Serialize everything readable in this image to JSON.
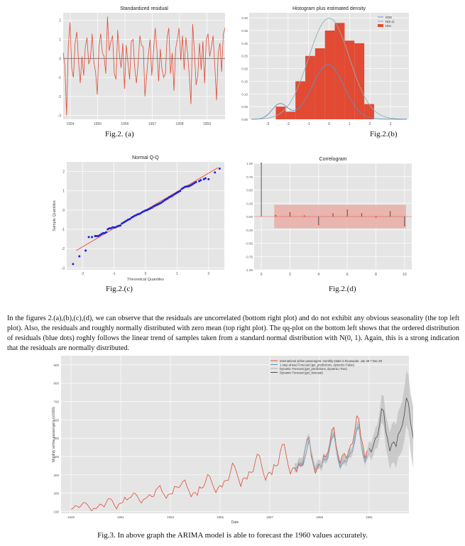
{
  "figures": {
    "a": {
      "caption": "Fig.2. (a)",
      "chart_data": {
        "type": "line",
        "title": "Standardized residual",
        "x_ticks": [
          "1954",
          "1955",
          "1956",
          "1957",
          "1958",
          "1959"
        ],
        "y_ticks": [
          "2",
          "1",
          "0",
          "-1",
          "-2",
          "-3"
        ],
        "ylim": [
          -3.2,
          2.4
        ],
        "reference_line": 0,
        "grid": true,
        "colors": {
          "line": "#e24a33",
          "reference": "#555555",
          "background": "#e5e5e5"
        },
        "values": [
          0.3,
          -0.4,
          -3.0,
          0.6,
          1.9,
          -0.5,
          -1.0,
          0.8,
          1.4,
          -0.1,
          -1.3,
          0.1,
          -0.9,
          0.6,
          1.1,
          -0.3,
          0.0,
          1.3,
          -0.2,
          -0.7,
          -1.9,
          0.6,
          1.3,
          0.3,
          0.1,
          -0.8,
          2.2,
          0.4,
          0.9,
          1.2,
          -0.8,
          -1.1,
          1.5,
          0.2,
          -0.5,
          0.8,
          -1.6,
          0.7,
          -0.2,
          -1.1,
          0.9,
          1.0,
          -0.5,
          -1.3,
          -0.3,
          1.2,
          0.7,
          0.6,
          -2.0,
          -0.9,
          0.2,
          1.0,
          -0.9,
          0.4,
          1.6,
          0.5,
          -1.2,
          0.5,
          -0.6,
          -1.0,
          -0.8,
          1.1,
          1.6,
          -0.8,
          0.3,
          -1.7,
          0.5,
          1.0,
          1.6,
          -0.1,
          1.2,
          -0.6,
          1.1,
          0.3,
          -0.9,
          -2.4,
          1.8,
          0.4,
          -1.4,
          -0.9,
          0.8,
          -0.6,
          0.9,
          -1.3,
          1.0,
          1.3,
          0.1,
          0.6,
          1.2,
          -0.4,
          -2.2,
          0.3,
          0.8,
          -0.7,
          1.3,
          1.6
        ]
      }
    },
    "b": {
      "caption": "Fig.2.(b)",
      "chart_data": {
        "type": "bar",
        "title": "Histogram plus estimated density",
        "x_ticks": [
          "-3",
          "-2",
          "-1",
          "0",
          "1",
          "2",
          "3"
        ],
        "y_ticks": [
          "0.40",
          "0.35",
          "0.30",
          "0.25",
          "0.20",
          "0.15",
          "0.10",
          "0.05",
          "0.00"
        ],
        "ylim": [
          0,
          0.42
        ],
        "xlim": [
          -3.9,
          3.9
        ],
        "legend": [
          "KDE",
          "N(0,1)",
          "Hist"
        ],
        "legend_position": "top-right",
        "grid": true,
        "bins": [
          -2.6,
          -2.12,
          -1.64,
          -1.16,
          -0.68,
          -0.2,
          0.28,
          0.76,
          1.24,
          1.72,
          2.2
        ],
        "hist_values": [
          0.05,
          0.03,
          0.15,
          0.25,
          0.28,
          0.35,
          0.38,
          0.31,
          0.3,
          0.06
        ],
        "colors": {
          "hist": "#e24a33",
          "kde": "#5f8fc7",
          "normal": "#8fb0b8",
          "background": "#e5e5e5"
        }
      }
    },
    "c": {
      "caption": "Fig.2.(c)",
      "chart_data": {
        "type": "scatter",
        "title": "Normal Q-Q",
        "xlabel": "Theoretical Quantiles",
        "ylabel": "Sample Quantiles",
        "x_ticks": [
          "-2",
          "-1",
          "0",
          "1",
          "2"
        ],
        "y_ticks": [
          "2",
          "1",
          "0",
          "-1",
          "-2",
          "-3"
        ],
        "xlim": [
          -2.5,
          2.5
        ],
        "ylim": [
          -3.1,
          2.5
        ],
        "grid": true,
        "reference_line": {
          "from": [
            -2.2,
            -2.1
          ],
          "to": [
            2.3,
            2.2
          ]
        },
        "points": [
          [
            -2.3,
            -2.8
          ],
          [
            -2.1,
            -2.4
          ],
          [
            -1.9,
            -2.1
          ],
          [
            -1.8,
            -1.4
          ],
          [
            -1.7,
            -1.4
          ],
          [
            -1.6,
            -1.35
          ],
          [
            -1.55,
            -1.35
          ],
          [
            -1.5,
            -1.35
          ],
          [
            -1.45,
            -1.3
          ],
          [
            -1.4,
            -1.25
          ],
          [
            -1.35,
            -1.2
          ],
          [
            -1.3,
            -1.2
          ],
          [
            -1.25,
            -1.15
          ],
          [
            -1.2,
            -1.0
          ],
          [
            -1.15,
            -0.95
          ],
          [
            -1.1,
            -0.95
          ],
          [
            -1.05,
            -0.9
          ],
          [
            -1.0,
            -0.9
          ],
          [
            -0.95,
            -0.9
          ],
          [
            -0.9,
            -0.85
          ],
          [
            -0.85,
            -0.82
          ],
          [
            -0.8,
            -0.8
          ],
          [
            -0.75,
            -0.7
          ],
          [
            -0.7,
            -0.65
          ],
          [
            -0.65,
            -0.6
          ],
          [
            -0.6,
            -0.55
          ],
          [
            -0.55,
            -0.5
          ],
          [
            -0.5,
            -0.47
          ],
          [
            -0.45,
            -0.4
          ],
          [
            -0.4,
            -0.35
          ],
          [
            -0.35,
            -0.3
          ],
          [
            -0.3,
            -0.27
          ],
          [
            -0.25,
            -0.22
          ],
          [
            -0.2,
            -0.2
          ],
          [
            -0.15,
            -0.16
          ],
          [
            -0.1,
            -0.1
          ],
          [
            -0.05,
            -0.06
          ],
          [
            0.0,
            -0.02
          ],
          [
            0.05,
            0.0
          ],
          [
            0.1,
            0.04
          ],
          [
            0.15,
            0.08
          ],
          [
            0.2,
            0.12
          ],
          [
            0.25,
            0.18
          ],
          [
            0.3,
            0.22
          ],
          [
            0.35,
            0.26
          ],
          [
            0.4,
            0.3
          ],
          [
            0.45,
            0.34
          ],
          [
            0.5,
            0.38
          ],
          [
            0.55,
            0.44
          ],
          [
            0.6,
            0.5
          ],
          [
            0.65,
            0.55
          ],
          [
            0.7,
            0.6
          ],
          [
            0.75,
            0.66
          ],
          [
            0.8,
            0.7
          ],
          [
            0.85,
            0.74
          ],
          [
            0.9,
            0.8
          ],
          [
            0.95,
            0.85
          ],
          [
            1.0,
            0.9
          ],
          [
            1.05,
            0.95
          ],
          [
            1.1,
            1.0
          ],
          [
            1.15,
            1.1
          ],
          [
            1.2,
            1.15
          ],
          [
            1.25,
            1.2
          ],
          [
            1.3,
            1.22
          ],
          [
            1.35,
            1.23
          ],
          [
            1.4,
            1.25
          ],
          [
            1.45,
            1.3
          ],
          [
            1.5,
            1.35
          ],
          [
            1.55,
            1.4
          ],
          [
            1.6,
            1.45
          ],
          [
            1.7,
            1.5
          ],
          [
            1.75,
            1.55
          ],
          [
            1.85,
            1.6
          ],
          [
            1.9,
            1.65
          ],
          [
            2.0,
            1.6
          ],
          [
            2.2,
            1.95
          ],
          [
            2.35,
            2.15
          ]
        ],
        "colors": {
          "points": "#1f1fd8",
          "line": "#e24a33",
          "background": "#e5e5e5"
        }
      }
    },
    "d": {
      "caption": "Fig.2.(d)",
      "chart_data": {
        "type": "bar",
        "title": "Correlogram",
        "x_ticks": [
          "0",
          "2",
          "4",
          "6",
          "8",
          "10"
        ],
        "y_ticks": [
          "1.00",
          "0.75",
          "0.50",
          "0.25",
          "0.00",
          "-0.25",
          "-0.50",
          "-0.75",
          "-1.00"
        ],
        "xlim": [
          -0.5,
          10.5
        ],
        "ylim": [
          -1,
          1
        ],
        "lags": [
          0,
          1,
          2,
          3,
          4,
          5,
          6,
          7,
          8,
          9,
          10
        ],
        "values": [
          1.0,
          0.02,
          0.07,
          0.01,
          -0.15,
          0.05,
          0.12,
          0.05,
          -0.01,
          0.09,
          -0.17
        ],
        "confidence_band": [
          0.22,
          -0.22
        ],
        "grid": true,
        "colors": {
          "stem": "#333333",
          "marker": "#e24a33",
          "band": "#e8a9a2",
          "background": "#e5e5e5"
        }
      }
    },
    "main": {
      "caption": "Fig.3. In above graph the ARIMA model is able to forecast the 1960 values accurately.",
      "chart_data": {
        "type": "line",
        "xlabel": "Date",
        "ylabel": "Monthly airline passengers (x1000)",
        "x_ticks": [
          "1949",
          "1951",
          "1953",
          "1955",
          "1957",
          "1959",
          "1961"
        ],
        "y_ticks": [
          "900",
          "800",
          "700",
          "600",
          "500",
          "400",
          "300",
          "200",
          "100"
        ],
        "ylim": [
          90,
          950
        ],
        "grid": true,
        "legend": [
          "International airline passengers: monthly totals in thousands. Jan 49 ? Dec 60",
          "1-step-ahead Forecast (get_predictions, dynamic=False)",
          "Dynamic Forecast (get_predictions, dynamic=True)",
          "Dynamic Forecast (get_forecast)"
        ],
        "legend_position": "top-right",
        "series": [
          {
            "name": "International airline passengers: monthly totals in thousands. Jan 49 ? Dec 60",
            "color": "#e24a33",
            "start": "1949-01",
            "values": [
              112,
              118,
              132,
              129,
              121,
              135,
              148,
              148,
              136,
              119,
              104,
              118,
              115,
              126,
              141,
              135,
              125,
              149,
              170,
              170,
              158,
              133,
              114,
              140,
              145,
              150,
              178,
              163,
              172,
              178,
              199,
              199,
              184,
              162,
              146,
              166,
              171,
              180,
              193,
              181,
              183,
              218,
              230,
              242,
              209,
              191,
              172,
              194,
              196,
              196,
              236,
              235,
              229,
              243,
              264,
              272,
              237,
              211,
              180,
              201,
              204,
              188,
              235,
              227,
              234,
              264,
              302,
              293,
              259,
              229,
              203,
              229,
              242,
              233,
              267,
              269,
              270,
              315,
              364,
              347,
              312,
              274,
              237,
              278,
              284,
              277,
              317,
              313,
              318,
              374,
              413,
              405,
              355,
              306,
              271,
              306,
              315,
              301,
              356,
              348,
              355,
              422,
              465,
              467,
              404,
              347,
              305,
              336,
              340,
              318,
              362,
              348,
              363,
              435,
              491,
              505,
              404,
              359,
              310,
              337,
              360,
              342,
              406,
              396,
              420,
              472,
              548,
              559,
              463,
              407,
              362,
              405,
              417,
              391,
              419,
              461,
              472,
              535,
              622,
              606,
              508,
              461,
              390,
              432
            ]
          },
          {
            "name": "1-step-ahead Forecast (get_predictions, dynamic=False)",
            "color": "#5f8fc7",
            "start": "1958-01",
            "values": [
              330,
              340,
              355,
              362,
              350,
              390,
              440,
              490,
              420,
              360,
              330,
              350,
              360,
              345,
              385,
              380,
              390,
              450,
              500,
              520,
              450,
              380,
              340,
              360,
              375,
              370,
              400,
              420,
              430,
              480,
              550,
              560,
              480,
              410,
              370,
              400
            ]
          },
          {
            "name": "Dynamic Forecast (get_predictions, dynamic=True)",
            "color": "#9fb3bb",
            "start": "1958-01",
            "values": [
              340,
              335,
              370,
              365,
              375,
              435,
              485,
              500,
              420,
              370,
              325,
              355,
              360,
              345,
              395,
              385,
              400,
              460,
              520,
              530,
              445,
              395,
              350,
              380,
              385,
              370,
              420,
              415,
              435,
              500,
              560,
              575,
              475,
              420,
              375,
              410
            ]
          },
          {
            "name": "Dynamic Forecast (get_forecast)",
            "color": "#4a4a4a",
            "start": "1961-01",
            "values": [
              445,
              425,
              460,
              500,
              510,
              570,
              660,
              650,
              540,
              490,
              430,
              470,
              480,
              455,
              520,
              540,
              570,
              630,
              720,
              690,
              585,
              520,
              455,
              520
            ]
          }
        ],
        "forecast_band_start": "1958-01",
        "colors": {
          "band": "#bdbdbd",
          "background": "#e5e5e5"
        }
      }
    }
  },
  "paragraph": "In the figures 2.(a),(b),(c),(d), we can observe that the residuals are uncorrelated (bottom right plot) and do not exhibit any obvious seasonality (the top left plot). Also, the residuals and roughly normally distributed with zero mean (top right plot). The qq-plot on the bottom left shows that the ordered distribution of residuals (blue dots) roghly follows the linear trend of samples taken from a standard normal distribution with N(0, 1). Again, this is a strong indication that the residuals are normally distributed."
}
